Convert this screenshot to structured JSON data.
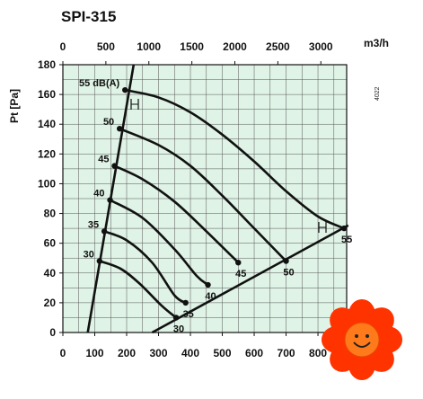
{
  "chart_data": {
    "type": "line",
    "title": "SPI-315",
    "ylabel": "Pt [Pa]",
    "x_top_label": "m3/h",
    "x_bottom_ticks": [
      0,
      100,
      200,
      300,
      400,
      500,
      600,
      700,
      800
    ],
    "x_top_ticks": [
      0,
      500,
      1000,
      1500,
      2000,
      2500,
      3000
    ],
    "y_ticks": [
      0,
      20,
      40,
      60,
      80,
      100,
      120,
      140,
      160,
      180
    ],
    "xlim_bottom": [
      0,
      890
    ],
    "xlim_top": [
      0,
      3300
    ],
    "ylim": [
      0,
      180
    ],
    "grid": true,
    "side_note": "4022",
    "series": [
      {
        "name": "55 dB(A)",
        "points": [
          [
            195,
            163
          ],
          [
            300,
            158
          ],
          [
            400,
            148
          ],
          [
            500,
            133
          ],
          [
            600,
            115
          ],
          [
            700,
            95
          ],
          [
            800,
            78
          ],
          [
            882,
            70
          ]
        ]
      },
      {
        "name": "50",
        "points": [
          [
            178,
            137
          ],
          [
            300,
            126
          ],
          [
            400,
            112
          ],
          [
            500,
            92
          ],
          [
            600,
            70
          ],
          [
            700,
            48
          ]
        ]
      },
      {
        "name": "45",
        "points": [
          [
            162,
            112
          ],
          [
            250,
            103
          ],
          [
            350,
            88
          ],
          [
            450,
            68
          ],
          [
            550,
            47
          ]
        ]
      },
      {
        "name": "40",
        "points": [
          [
            148,
            89
          ],
          [
            250,
            77
          ],
          [
            350,
            56
          ],
          [
            420,
            38
          ],
          [
            455,
            32
          ]
        ]
      },
      {
        "name": "35",
        "points": [
          [
            130,
            68
          ],
          [
            200,
            62
          ],
          [
            280,
            47
          ],
          [
            350,
            25
          ],
          [
            385,
            20
          ]
        ]
      },
      {
        "name": "30",
        "points": [
          [
            115,
            48
          ],
          [
            180,
            43
          ],
          [
            240,
            33
          ],
          [
            310,
            18
          ],
          [
            355,
            10
          ]
        ]
      }
    ],
    "left_line": [
      [
        78,
        0
      ],
      [
        222,
        180
      ]
    ],
    "bottom_line": [
      [
        280,
        0
      ],
      [
        895,
        72
      ]
    ],
    "curve_labels": [
      {
        "text": "55 dB(A)",
        "x": 195,
        "y": 163
      },
      {
        "text": "50",
        "x": 178,
        "y": 137
      },
      {
        "text": "45",
        "x": 162,
        "y": 112
      },
      {
        "text": "40",
        "x": 148,
        "y": 89
      },
      {
        "text": "35",
        "x": 130,
        "y": 68
      },
      {
        "text": "30",
        "x": 115,
        "y": 48
      }
    ],
    "end_labels": [
      {
        "text": "55",
        "x": 882,
        "y": 70
      },
      {
        "text": "50",
        "x": 700,
        "y": 48
      },
      {
        "text": "45",
        "x": 550,
        "y": 47
      },
      {
        "text": "40",
        "x": 455,
        "y": 32
      },
      {
        "text": "35",
        "x": 385,
        "y": 20
      },
      {
        "text": "30",
        "x": 355,
        "y": 10
      }
    ]
  },
  "colors": {
    "background": "#dff3e6",
    "grid": "#555555",
    "curve": "#111111",
    "flower_petal": "#ff3300",
    "flower_center": "#ff7a1a"
  },
  "decoration": {
    "icon": "smiley-flower-icon"
  }
}
